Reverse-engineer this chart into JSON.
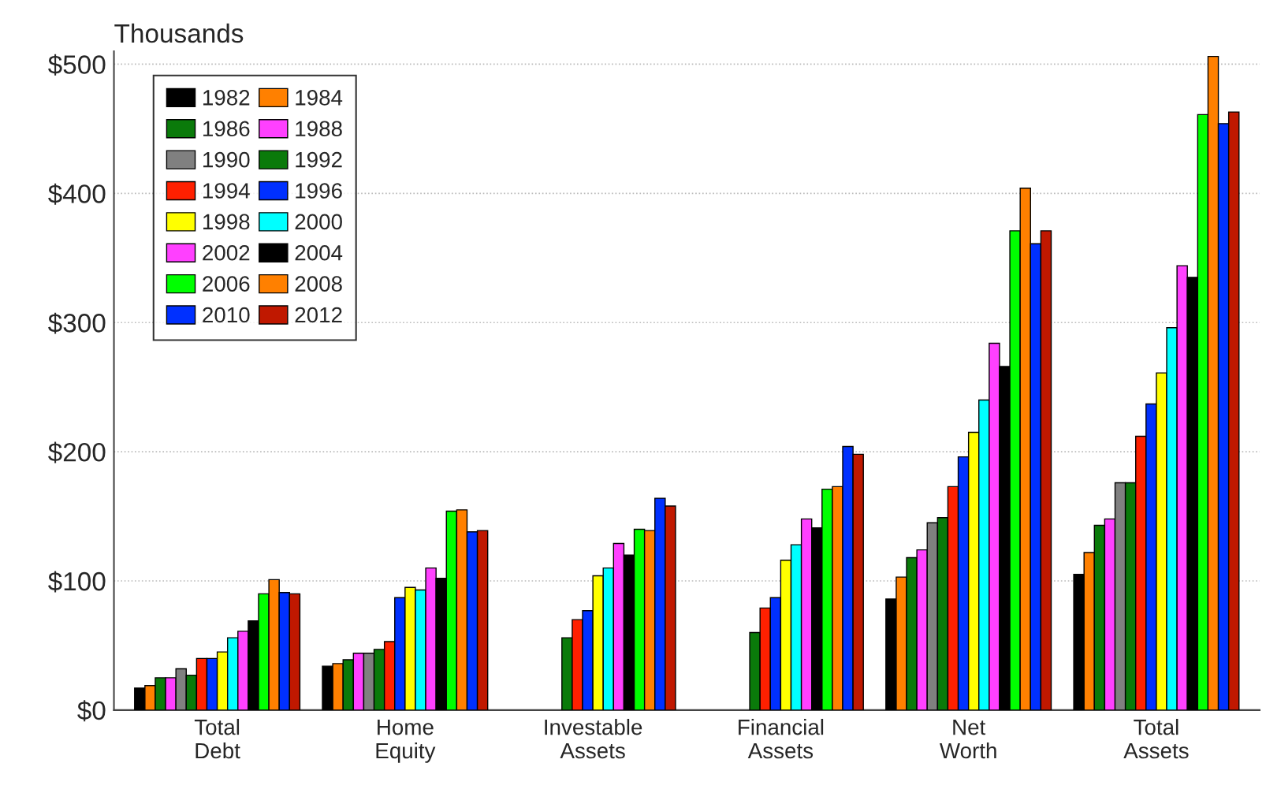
{
  "chart_data": {
    "type": "bar",
    "ylabel": "Thousands",
    "categories": [
      "Total\nDebt",
      "Home\nEquity",
      "Investable\nAssets",
      "Financial\nAssets",
      "Net\nWorth",
      "Total\nAssets"
    ],
    "series": [
      {
        "name": "1982",
        "color": "#000000",
        "values": [
          17,
          34,
          null,
          null,
          86,
          105
        ]
      },
      {
        "name": "1984",
        "color": "#ff8000",
        "values": [
          19,
          36,
          null,
          null,
          103,
          122
        ]
      },
      {
        "name": "1986",
        "color": "#0a7a0a",
        "values": [
          25,
          39,
          null,
          null,
          118,
          143
        ]
      },
      {
        "name": "1988",
        "color": "#ff40ff",
        "values": [
          25,
          44,
          null,
          null,
          124,
          148
        ]
      },
      {
        "name": "1990",
        "color": "#808080",
        "values": [
          32,
          44,
          null,
          null,
          145,
          176
        ]
      },
      {
        "name": "1992",
        "color": "#0a7a0a",
        "values": [
          27,
          47,
          56,
          60,
          149,
          176
        ]
      },
      {
        "name": "1994",
        "color": "#ff2000",
        "values": [
          40,
          53,
          70,
          79,
          173,
          212
        ]
      },
      {
        "name": "1996",
        "color": "#0030ff",
        "values": [
          40,
          87,
          77,
          87,
          196,
          237
        ]
      },
      {
        "name": "1998",
        "color": "#ffff00",
        "values": [
          45,
          95,
          104,
          116,
          215,
          261
        ]
      },
      {
        "name": "2000",
        "color": "#00ffff",
        "values": [
          56,
          93,
          110,
          128,
          240,
          296
        ]
      },
      {
        "name": "2002",
        "color": "#ff40ff",
        "values": [
          61,
          110,
          129,
          148,
          284,
          344
        ]
      },
      {
        "name": "2004",
        "color": "#000000",
        "values": [
          69,
          102,
          120,
          141,
          266,
          335
        ]
      },
      {
        "name": "2006",
        "color": "#00ff00",
        "values": [
          90,
          154,
          140,
          171,
          371,
          461
        ]
      },
      {
        "name": "2008",
        "color": "#ff8000",
        "values": [
          101,
          155,
          139,
          173,
          404,
          506
        ]
      },
      {
        "name": "2010",
        "color": "#0030ff",
        "values": [
          91,
          138,
          164,
          204,
          361,
          454
        ]
      },
      {
        "name": "2012",
        "color": "#c01800",
        "values": [
          90,
          139,
          158,
          198,
          371,
          463
        ]
      }
    ],
    "ylim": [
      0,
      510
    ],
    "yticks": [
      {
        "value": 0,
        "label": "$0"
      },
      {
        "value": 100,
        "label": "$100"
      },
      {
        "value": 200,
        "label": "$200"
      },
      {
        "value": 300,
        "label": "$300"
      },
      {
        "value": 400,
        "label": "$400"
      },
      {
        "value": 500,
        "label": "$500"
      }
    ],
    "grid": "y",
    "legend": "top left"
  }
}
